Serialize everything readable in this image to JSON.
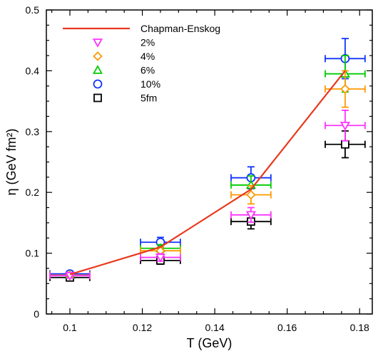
{
  "chart_data": {
    "type": "scatter",
    "xlabel": "T (GeV)",
    "ylabel": "η (GeV fm²)",
    "xlim": [
      0.0935,
      0.1835
    ],
    "ylim": [
      0,
      0.5
    ],
    "x_ticks": [
      0.1,
      0.12,
      0.14,
      0.16,
      0.18
    ],
    "x_tick_labels": [
      "0.1",
      "0.12",
      "0.14",
      "0.16",
      "0.18"
    ],
    "y_ticks": [
      0,
      0.1,
      0.2,
      0.3,
      0.4,
      0.5
    ],
    "y_tick_labels": [
      "0",
      "0.1",
      "0.2",
      "0.3",
      "0.4",
      "0.5"
    ],
    "grid": false,
    "legend_position": "top-left",
    "x_error": 0.0055,
    "series": [
      {
        "name": "Chapman-Enskog",
        "kind": "line",
        "color": "#e8381c",
        "x": [
          0.1,
          0.125,
          0.15,
          0.176
        ],
        "y": [
          0.065,
          0.11,
          0.205,
          0.4
        ]
      },
      {
        "name": "2%",
        "marker": "triangle-down",
        "color": "#ff33ff",
        "x": [
          0.1,
          0.125,
          0.15,
          0.176
        ],
        "y": [
          0.063,
          0.093,
          0.163,
          0.31
        ],
        "yerr": [
          0.004,
          0.006,
          0.012,
          0.025
        ]
      },
      {
        "name": "4%",
        "marker": "diamond",
        "color": "#ff9900",
        "x": [
          0.1,
          0.125,
          0.15,
          0.176
        ],
        "y": [
          0.064,
          0.104,
          0.196,
          0.37
        ],
        "yerr": [
          0.004,
          0.006,
          0.015,
          0.03
        ]
      },
      {
        "name": "6%",
        "marker": "triangle-up",
        "color": "#00cc00",
        "x": [
          0.1,
          0.125,
          0.15,
          0.176
        ],
        "y": [
          0.064,
          0.108,
          0.212,
          0.395
        ],
        "yerr": [
          0.004,
          0.006,
          0.015,
          0.03
        ]
      },
      {
        "name": "10%",
        "marker": "circle",
        "color": "#1133ff",
        "x": [
          0.1,
          0.125,
          0.15,
          0.176
        ],
        "y": [
          0.066,
          0.118,
          0.224,
          0.42
        ],
        "yerr": [
          0.004,
          0.008,
          0.018,
          0.033
        ]
      },
      {
        "name": "5fm",
        "marker": "square",
        "color": "#000000",
        "x": [
          0.1,
          0.125,
          0.15,
          0.176
        ],
        "y": [
          0.06,
          0.088,
          0.152,
          0.279
        ],
        "yerr": [
          0.004,
          0.006,
          0.012,
          0.022
        ]
      }
    ]
  }
}
